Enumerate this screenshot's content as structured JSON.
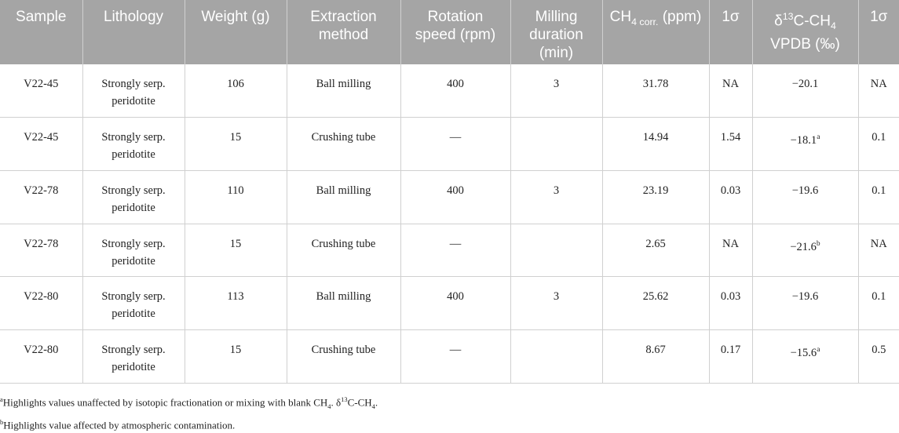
{
  "table": {
    "header": [
      "Sample",
      "Lithology",
      "Weight (g)",
      "Extraction method",
      "Rotation speed (rpm)",
      "Milling duration (min)",
      [
        "CH",
        {
          "sub": "4 corr."
        },
        " (ppm)"
      ],
      "1σ",
      [
        "δ",
        {
          "sup": "13"
        },
        "C-CH",
        {
          "sub": "4"
        },
        " VPDB (‰)"
      ],
      "1σ"
    ],
    "rows": [
      [
        "V22-45",
        "Strongly serp. peridotite",
        "106",
        "Ball milling",
        "400",
        "3",
        "31.78",
        "NA",
        "−20.1",
        "NA"
      ],
      [
        "V22-45",
        "Strongly serp. peridotite",
        "15",
        "Crushing tube",
        "—",
        null,
        "14.94",
        "1.54",
        [
          "−18.1",
          {
            "sup": "a"
          }
        ],
        "0.1"
      ],
      [
        "V22-78",
        "Strongly serp. peridotite",
        "110",
        "Ball milling",
        "400",
        "3",
        "23.19",
        "0.03",
        "−19.6",
        "0.1"
      ],
      [
        "V22-78",
        "Strongly serp. peridotite",
        "15",
        "Crushing tube",
        "—",
        null,
        "2.65",
        "NA",
        [
          "−21.6",
          {
            "sup": "b"
          }
        ],
        "NA"
      ],
      [
        "V22-80",
        "Strongly serp. peridotite",
        "113",
        "Ball milling",
        "400",
        "3",
        "25.62",
        "0.03",
        "−19.6",
        "0.1"
      ],
      [
        "V22-80",
        "Strongly serp. peridotite",
        "15",
        "Crushing tube",
        "—",
        null,
        "8.67",
        "0.17",
        [
          "−15.6",
          {
            "sup": "a"
          }
        ],
        "0.5"
      ]
    ]
  },
  "footnotes": [
    [
      {
        "sup": "a"
      },
      "Highlights values unaffected by isotopic fractionation or mixing with blank CH",
      {
        "sub": "4"
      },
      ". δ",
      {
        "sup": "13"
      },
      "C-CH",
      {
        "sub": "4"
      },
      "."
    ],
    [
      {
        "sup": "b"
      },
      "Highlights value affected by atmospheric contamination."
    ]
  ]
}
